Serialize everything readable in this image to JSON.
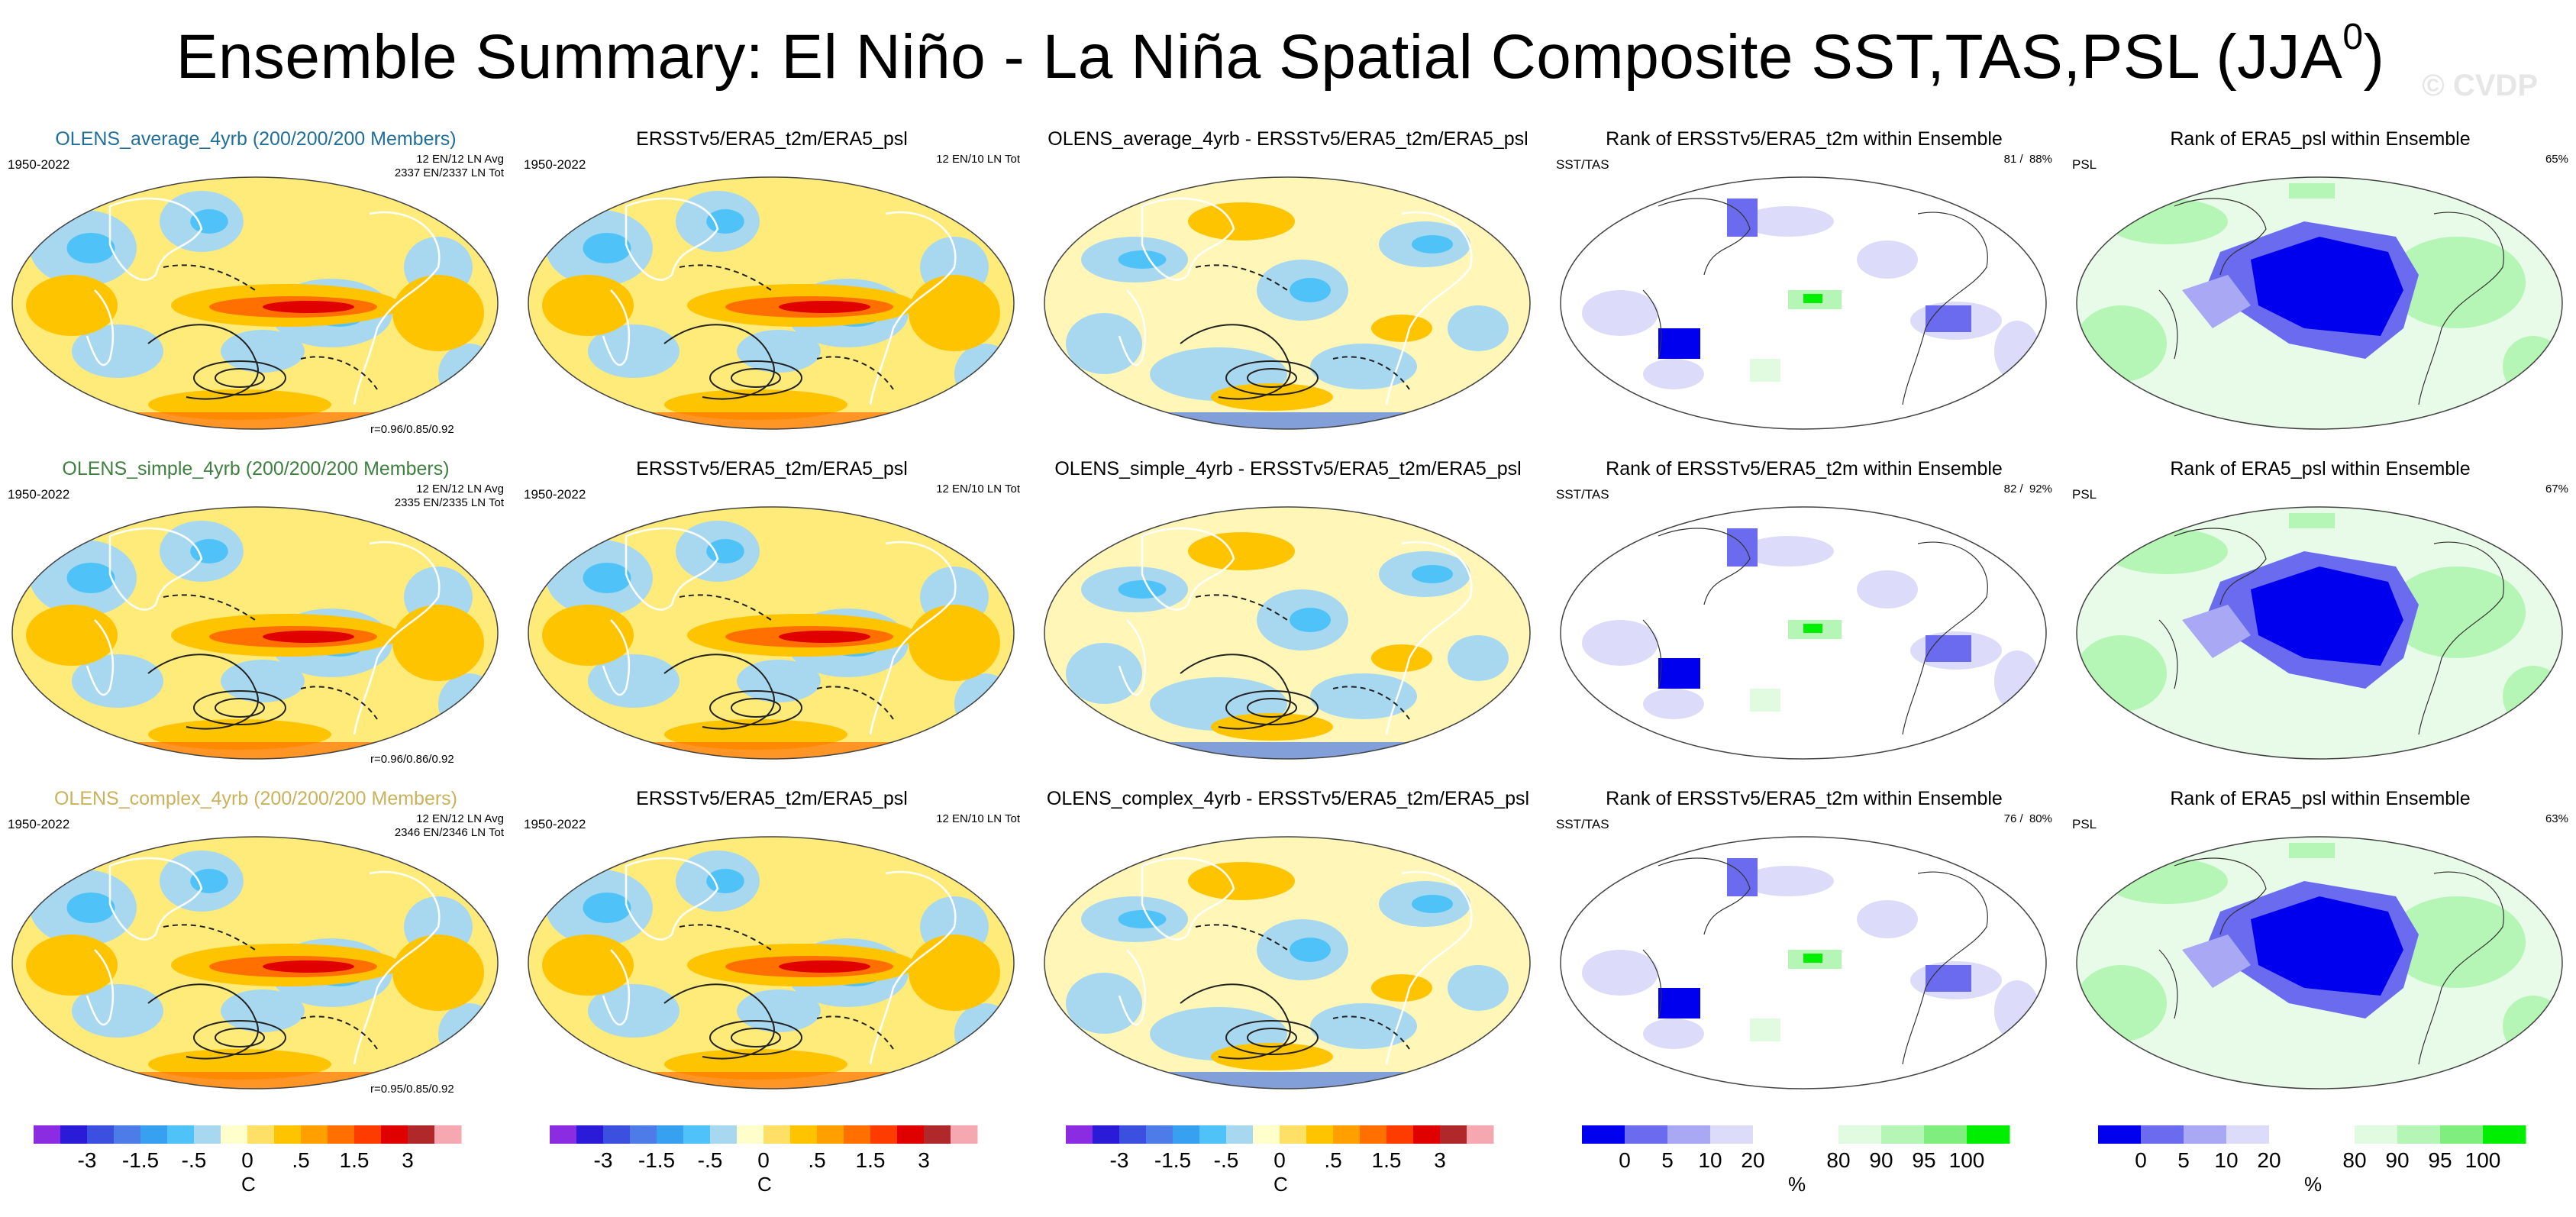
{
  "title": "Ensemble Summary: El Niño - La Niña Spatial Composite SST,TAS,PSL (JJA",
  "title_superscript": "0",
  "title_close": ")",
  "watermark": "© CVDP",
  "rows": [
    {
      "panels": [
        {
          "title": "OLENS_average_4yrb (200/200/200 Members)",
          "title_color": "#1f6f9a",
          "left": "1950-2022",
          "right": "12 EN/12 LN Avg\n2337 EN/2337 LN Tot",
          "corr": "r=0.96/0.85/0.92"
        },
        {
          "title": "ERSSTv5/ERA5_t2m/ERA5_psl",
          "title_color": "#000000",
          "left": "1950-2022",
          "right": "12 EN/10 LN Tot"
        },
        {
          "title": "OLENS_average_4yrb - ERSSTv5/ERA5_t2m/ERA5_psl",
          "title_color": "#000000"
        },
        {
          "title": "Rank of ERSSTv5/ERA5_t2m within Ensemble",
          "title_color": "#000000",
          "left": "SST/TAS",
          "right": "81 /  88%"
        },
        {
          "title": "Rank of ERA5_psl within Ensemble",
          "title_color": "#000000",
          "left": "PSL",
          "right": "65%"
        }
      ]
    },
    {
      "panels": [
        {
          "title": "OLENS_simple_4yrb (200/200/200 Members)",
          "title_color": "#3f7f3f",
          "left": "1950-2022",
          "right": "12 EN/12 LN Avg\n2335 EN/2335 LN Tot",
          "corr": "r=0.96/0.86/0.92"
        },
        {
          "title": "ERSSTv5/ERA5_t2m/ERA5_psl",
          "title_color": "#000000",
          "left": "1950-2022",
          "right": "12 EN/10 LN Tot"
        },
        {
          "title": "OLENS_simple_4yrb - ERSSTv5/ERA5_t2m/ERA5_psl",
          "title_color": "#000000"
        },
        {
          "title": "Rank of ERSSTv5/ERA5_t2m within Ensemble",
          "title_color": "#000000",
          "left": "SST/TAS",
          "right": "82 /  92%"
        },
        {
          "title": "Rank of ERA5_psl within Ensemble",
          "title_color": "#000000",
          "left": "PSL",
          "right": "67%"
        }
      ]
    },
    {
      "panels": [
        {
          "title": "OLENS_complex_4yrb (200/200/200 Members)",
          "title_color": "#c9b25a",
          "left": "1950-2022",
          "right": "12 EN/12 LN Avg\n2346 EN/2346 LN Tot",
          "corr": "r=0.95/0.85/0.92"
        },
        {
          "title": "ERSSTv5/ERA5_t2m/ERA5_psl",
          "title_color": "#000000",
          "left": "1950-2022",
          "right": "12 EN/10 LN Tot"
        },
        {
          "title": "OLENS_complex_4yrb - ERSSTv5/ERA5_t2m/ERA5_psl",
          "title_color": "#000000"
        },
        {
          "title": "Rank of ERSSTv5/ERA5_t2m within Ensemble",
          "title_color": "#000000",
          "left": "SST/TAS",
          "right": "76 /  80%"
        },
        {
          "title": "Rank of ERA5_psl within Ensemble",
          "title_color": "#000000",
          "left": "PSL",
          "right": "63%"
        }
      ]
    }
  ],
  "colorbars": {
    "temperature": {
      "unit": "C",
      "colors": [
        "#8b2be2",
        "#2a1bd9",
        "#3c50e0",
        "#4d7be8",
        "#38a0f0",
        "#4fc3f7",
        "#a8d8f0",
        "#ffffcc",
        "#ffe066",
        "#ffc400",
        "#ff9f00",
        "#ff7000",
        "#ff3c00",
        "#e00000",
        "#b0282a",
        "#f5a8b0"
      ],
      "ticks": [
        "-3",
        "-1.5",
        "-.5",
        "0",
        ".5",
        "1.5",
        "3"
      ],
      "tick_boundaries": [
        2,
        4,
        6,
        8,
        10,
        12,
        14
      ]
    },
    "rank": {
      "unit": "%",
      "colors": [
        "#0000ee",
        "#6b6bf0",
        "#a8a8f5",
        "#dcdcfa",
        "#ffffff",
        "#ffffff",
        "#e0fbe0",
        "#b5f5b5",
        "#7fee7f",
        "#00ee00"
      ],
      "ticks": [
        "0",
        "5",
        "10",
        "20",
        "80",
        "90",
        "95",
        "100"
      ],
      "tick_boundaries": [
        1,
        2,
        3,
        4,
        6,
        7,
        8,
        9
      ]
    }
  }
}
